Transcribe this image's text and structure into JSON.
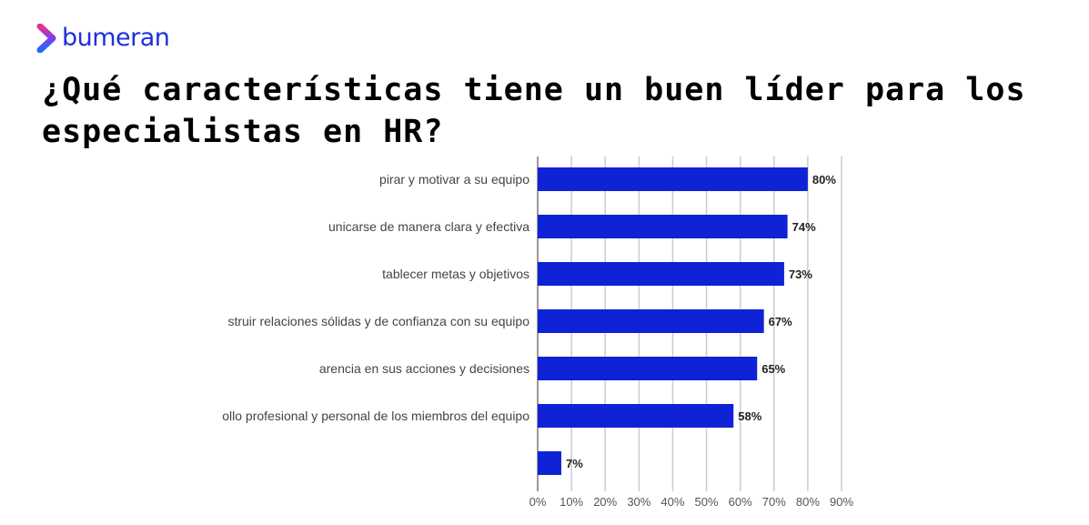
{
  "brand": {
    "name": "bumeran",
    "color": "#1f2fd8"
  },
  "title": {
    "line1": "¿Qué características tiene un buen líder para los",
    "line2": "especialistas en HR?"
  },
  "chart_data": {
    "type": "bar",
    "orientation": "horizontal",
    "categories": [
      "pirar y motivar a su equipo",
      "unicarse de manera clara y efectiva",
      "tablecer metas y objetivos",
      "struir relaciones sólidas y de confianza con su equipo",
      "arencia en sus acciones y decisiones",
      "ollo profesional y personal de los miembros del equipo",
      ""
    ],
    "values": [
      80,
      74,
      73,
      67,
      65,
      58,
      7
    ],
    "data_labels": [
      "80%",
      "74%",
      "73%",
      "67%",
      "65%",
      "58%",
      "7%"
    ],
    "xlim": [
      0,
      90
    ],
    "xticks": [
      "0%",
      "10%",
      "20%",
      "30%",
      "40%",
      "50%",
      "60%",
      "70%",
      "80%",
      "90%"
    ],
    "grid": true,
    "bar_color": "#0f22d6"
  }
}
